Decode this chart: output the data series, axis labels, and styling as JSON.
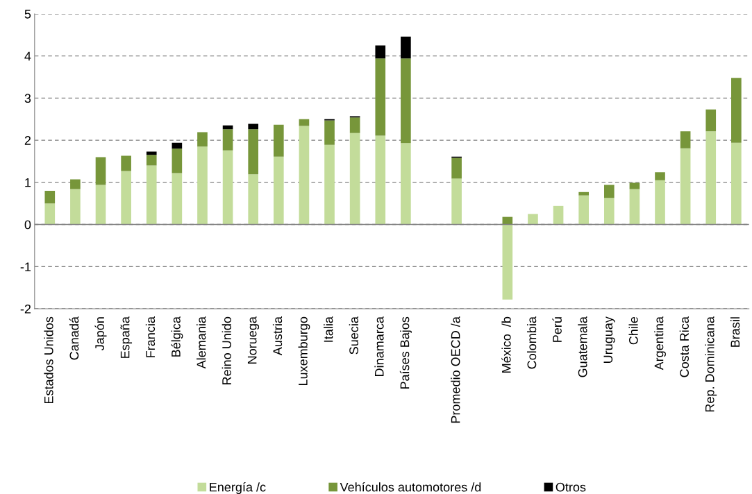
{
  "chart_data": {
    "type": "bar",
    "stacked": true,
    "categories": [
      "Estados Unidos",
      "Canadá",
      "Japón",
      "España",
      "Francia",
      "Bélgica",
      "Alemania",
      "Reino Unido",
      "Noruega",
      "Austria",
      "Luxemburgo",
      "Italia",
      "Suecia",
      "Dinamarca",
      "Países Bajos",
      null,
      "Promedio OECD /a",
      null,
      "México  /b",
      "Colombia",
      "Perú",
      "Guatemala",
      "Uruguay",
      "Chile",
      "Argentina",
      "Costa Rica",
      "Rep. Dominicana",
      "Brasil"
    ],
    "series": [
      {
        "name": "Energía /c",
        "color": "#c3dc9a",
        "values": [
          0.5,
          0.84,
          0.94,
          1.27,
          1.4,
          1.22,
          1.85,
          1.76,
          1.19,
          1.61,
          2.34,
          1.89,
          2.17,
          2.11,
          1.93,
          null,
          1.09,
          null,
          -1.78,
          0.25,
          0.44,
          0.69,
          0.63,
          0.84,
          1.05,
          1.81,
          2.21,
          1.94
        ]
      },
      {
        "name": "Vehículos automotores /d",
        "color": "#77963a",
        "values": [
          0.3,
          0.23,
          0.66,
          0.36,
          0.25,
          0.58,
          0.34,
          0.5,
          1.07,
          0.76,
          0.16,
          0.58,
          0.37,
          1.83,
          2.01,
          null,
          0.49,
          null,
          0.18,
          null,
          null,
          0.08,
          0.31,
          0.15,
          0.19,
          0.4,
          0.52,
          1.54
        ]
      },
      {
        "name": "Otros",
        "color": "#000000",
        "values": [
          null,
          null,
          null,
          null,
          0.08,
          0.14,
          null,
          0.09,
          0.13,
          null,
          null,
          0.03,
          0.03,
          0.31,
          0.52,
          null,
          0.03,
          null,
          null,
          null,
          null,
          null,
          null,
          null,
          null,
          null,
          null,
          null
        ]
      }
    ],
    "ylim": [
      -2,
      5
    ],
    "yticks": [
      -2,
      -1,
      0,
      1,
      2,
      3,
      4,
      5
    ],
    "grid": "y",
    "legend": "bottom"
  }
}
